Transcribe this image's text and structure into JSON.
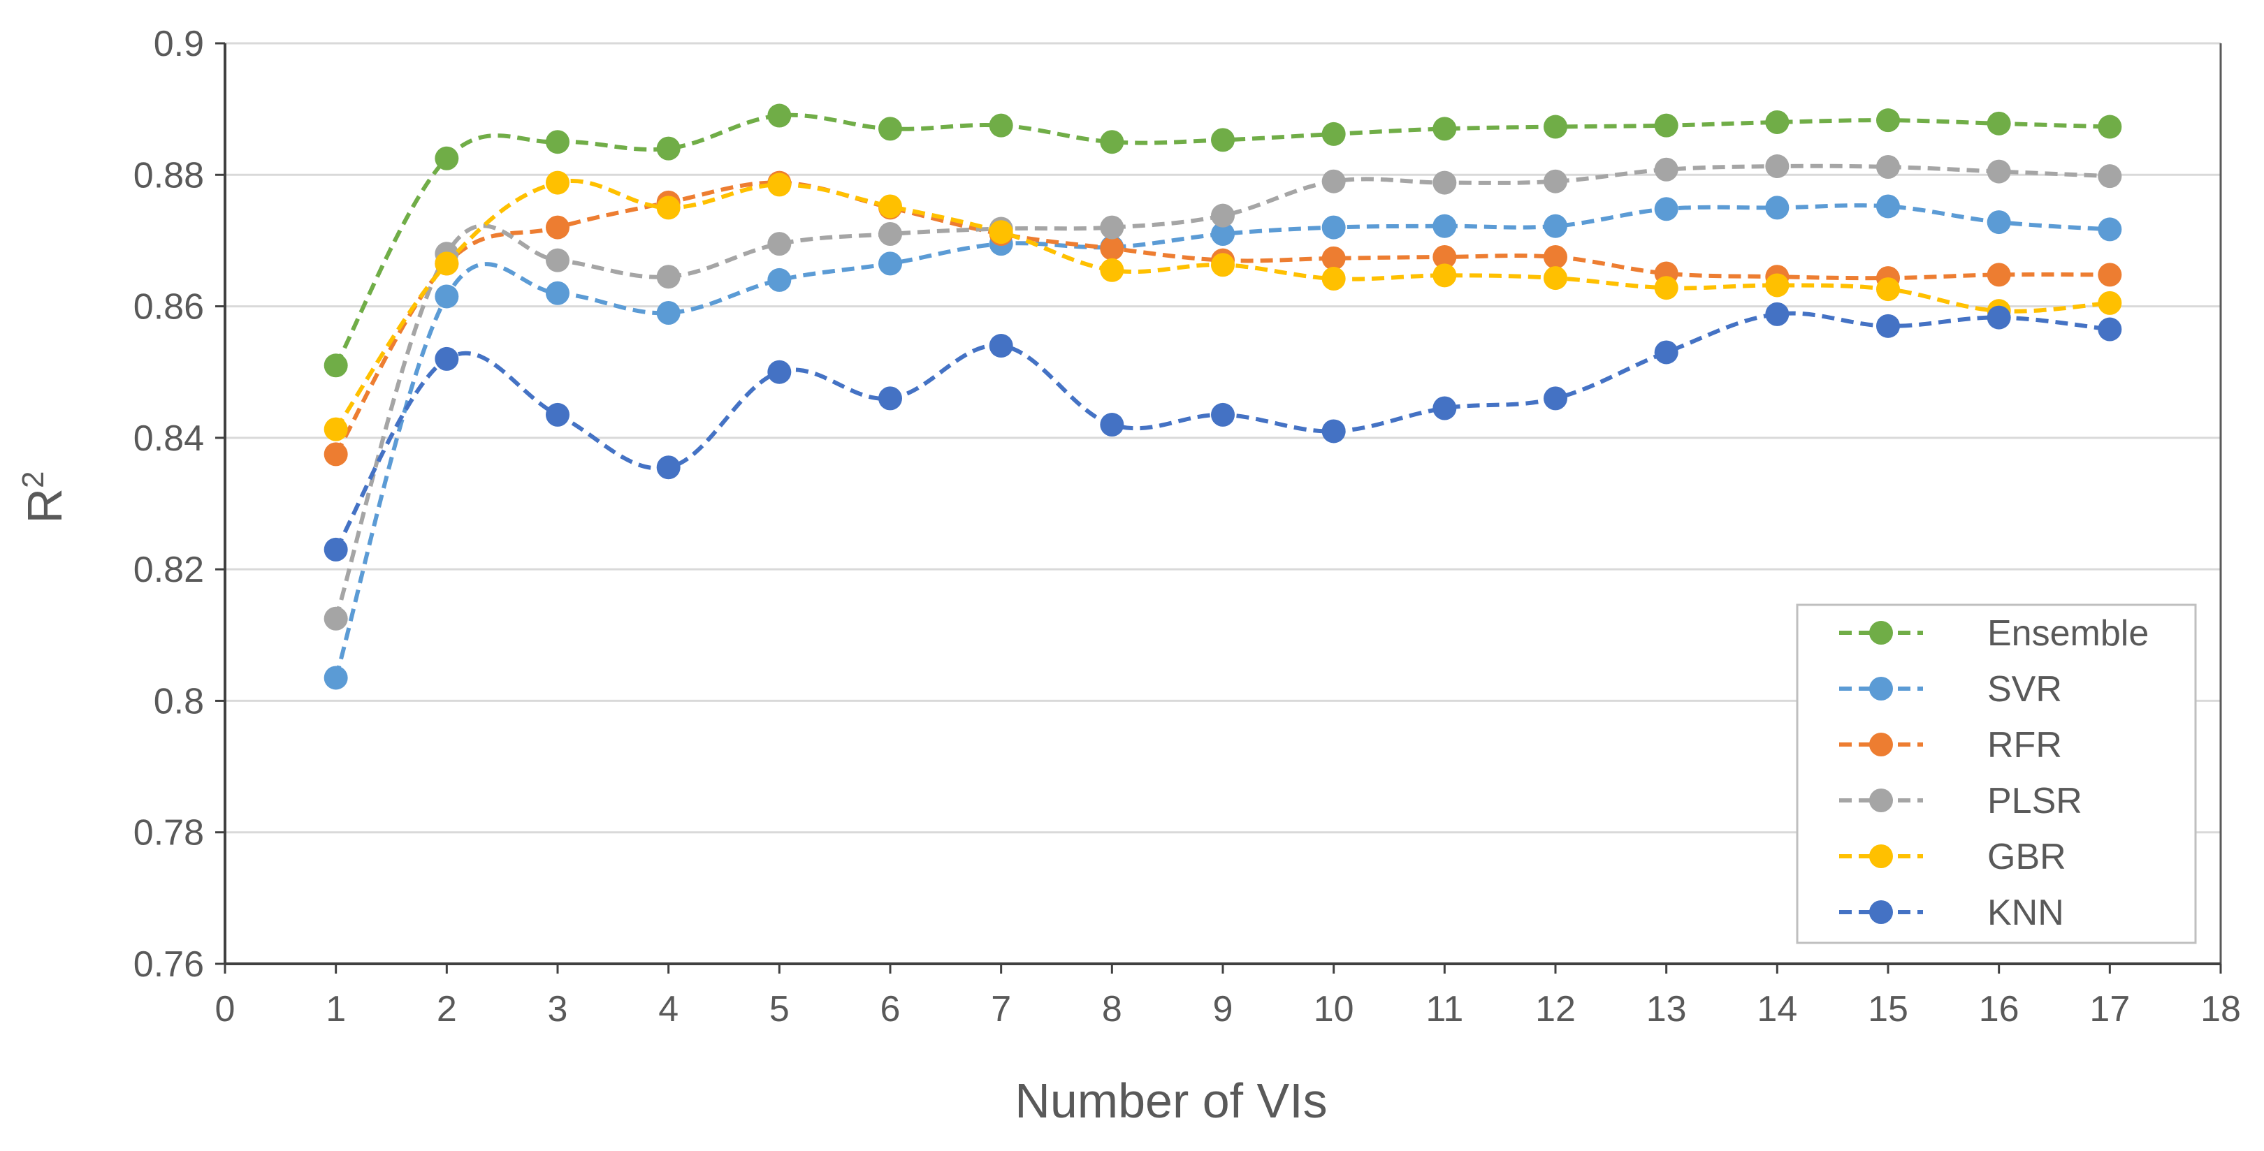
{
  "chart_data": {
    "type": "line",
    "title": "",
    "xlabel": "Number of VIs",
    "ylabel": "R",
    "ylabel_superscript": "2",
    "xlim": [
      0,
      18
    ],
    "ylim": [
      0.76,
      0.9
    ],
    "xticks": [
      "0",
      "1",
      "2",
      "3",
      "4",
      "5",
      "6",
      "7",
      "8",
      "9",
      "10",
      "11",
      "12",
      "13",
      "14",
      "15",
      "16",
      "17",
      "18"
    ],
    "yticks": [
      "0.76",
      "0.78",
      "0.8",
      "0.82",
      "0.84",
      "0.86",
      "0.88",
      "0.9"
    ],
    "grid": true,
    "legend_position": "bottom-right",
    "x": [
      1,
      2,
      3,
      4,
      5,
      6,
      7,
      8,
      9,
      10,
      11,
      12,
      13,
      14,
      15,
      16,
      17
    ],
    "series": [
      {
        "name": "Ensemble",
        "color": "#70AD47",
        "values": [
          0.851,
          0.8825,
          0.885,
          0.884,
          0.889,
          0.887,
          0.8875,
          0.885,
          0.8853,
          0.8862,
          0.887,
          0.8873,
          0.8875,
          0.888,
          0.8883,
          0.8878,
          0.8873
        ]
      },
      {
        "name": "SVR",
        "color": "#5B9BD5",
        "values": [
          0.8035,
          0.8615,
          0.862,
          0.859,
          0.864,
          0.8665,
          0.8695,
          0.869,
          0.871,
          0.872,
          0.8722,
          0.8722,
          0.8748,
          0.875,
          0.8752,
          0.8728,
          0.8717
        ]
      },
      {
        "name": "RFR",
        "color": "#ED7D31",
        "values": [
          0.8375,
          0.8665,
          0.872,
          0.8758,
          0.8788,
          0.875,
          0.871,
          0.8688,
          0.867,
          0.8673,
          0.8675,
          0.8675,
          0.865,
          0.8645,
          0.8643,
          0.8648,
          0.8648
        ]
      },
      {
        "name": "PLSR",
        "color": "#A5A5A5",
        "values": [
          0.8125,
          0.868,
          0.867,
          0.8645,
          0.8695,
          0.871,
          0.8718,
          0.872,
          0.8738,
          0.879,
          0.8788,
          0.879,
          0.8808,
          0.8813,
          0.8812,
          0.8805,
          0.8798
        ]
      },
      {
        "name": "GBR",
        "color": "#FFC000",
        "values": [
          0.8413,
          0.8665,
          0.8788,
          0.875,
          0.8785,
          0.8752,
          0.8713,
          0.8655,
          0.8663,
          0.8642,
          0.8647,
          0.8643,
          0.8628,
          0.8632,
          0.8626,
          0.8593,
          0.8605
        ]
      },
      {
        "name": "KNN",
        "color": "#4472C4",
        "values": [
          0.823,
          0.852,
          0.8435,
          0.8355,
          0.85,
          0.846,
          0.854,
          0.842,
          0.8435,
          0.841,
          0.8445,
          0.846,
          0.853,
          0.8588,
          0.857,
          0.8583,
          0.8565
        ]
      }
    ]
  }
}
